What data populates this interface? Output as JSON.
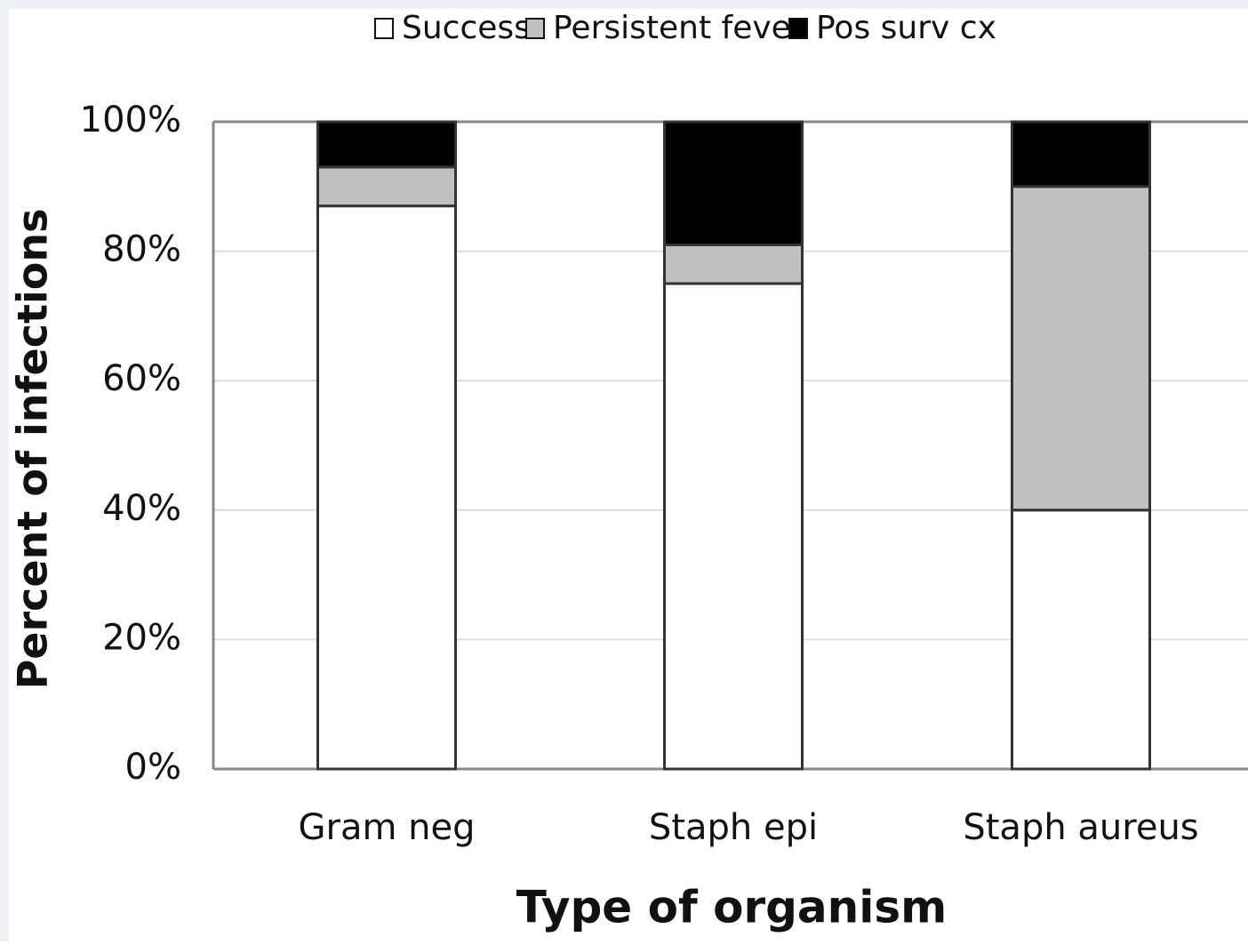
{
  "chart_data": {
    "type": "stacked-bar",
    "x_label": "Type of organism",
    "y_label": "Percent of infections",
    "categories": [
      "Gram neg",
      "Staph epi",
      "Staph aureus"
    ],
    "series": [
      {
        "name": "Success",
        "color": "#ffffff",
        "values": [
          87,
          75,
          40
        ]
      },
      {
        "name": "Persistent fever",
        "color": "#c0c0c0",
        "values": [
          6,
          6,
          50
        ]
      },
      {
        "name": "Pos surv cx",
        "color": "#000000",
        "values": [
          7,
          19,
          10
        ]
      }
    ],
    "ylim": [
      0,
      100
    ],
    "yticks": [
      {
        "value": 0,
        "label": "0%"
      },
      {
        "value": 20,
        "label": "20%"
      },
      {
        "value": 40,
        "label": "40%"
      },
      {
        "value": 60,
        "label": "60%"
      },
      {
        "value": 80,
        "label": "80%"
      },
      {
        "value": 100,
        "label": "100%"
      }
    ],
    "grid": true,
    "legend": "top"
  }
}
